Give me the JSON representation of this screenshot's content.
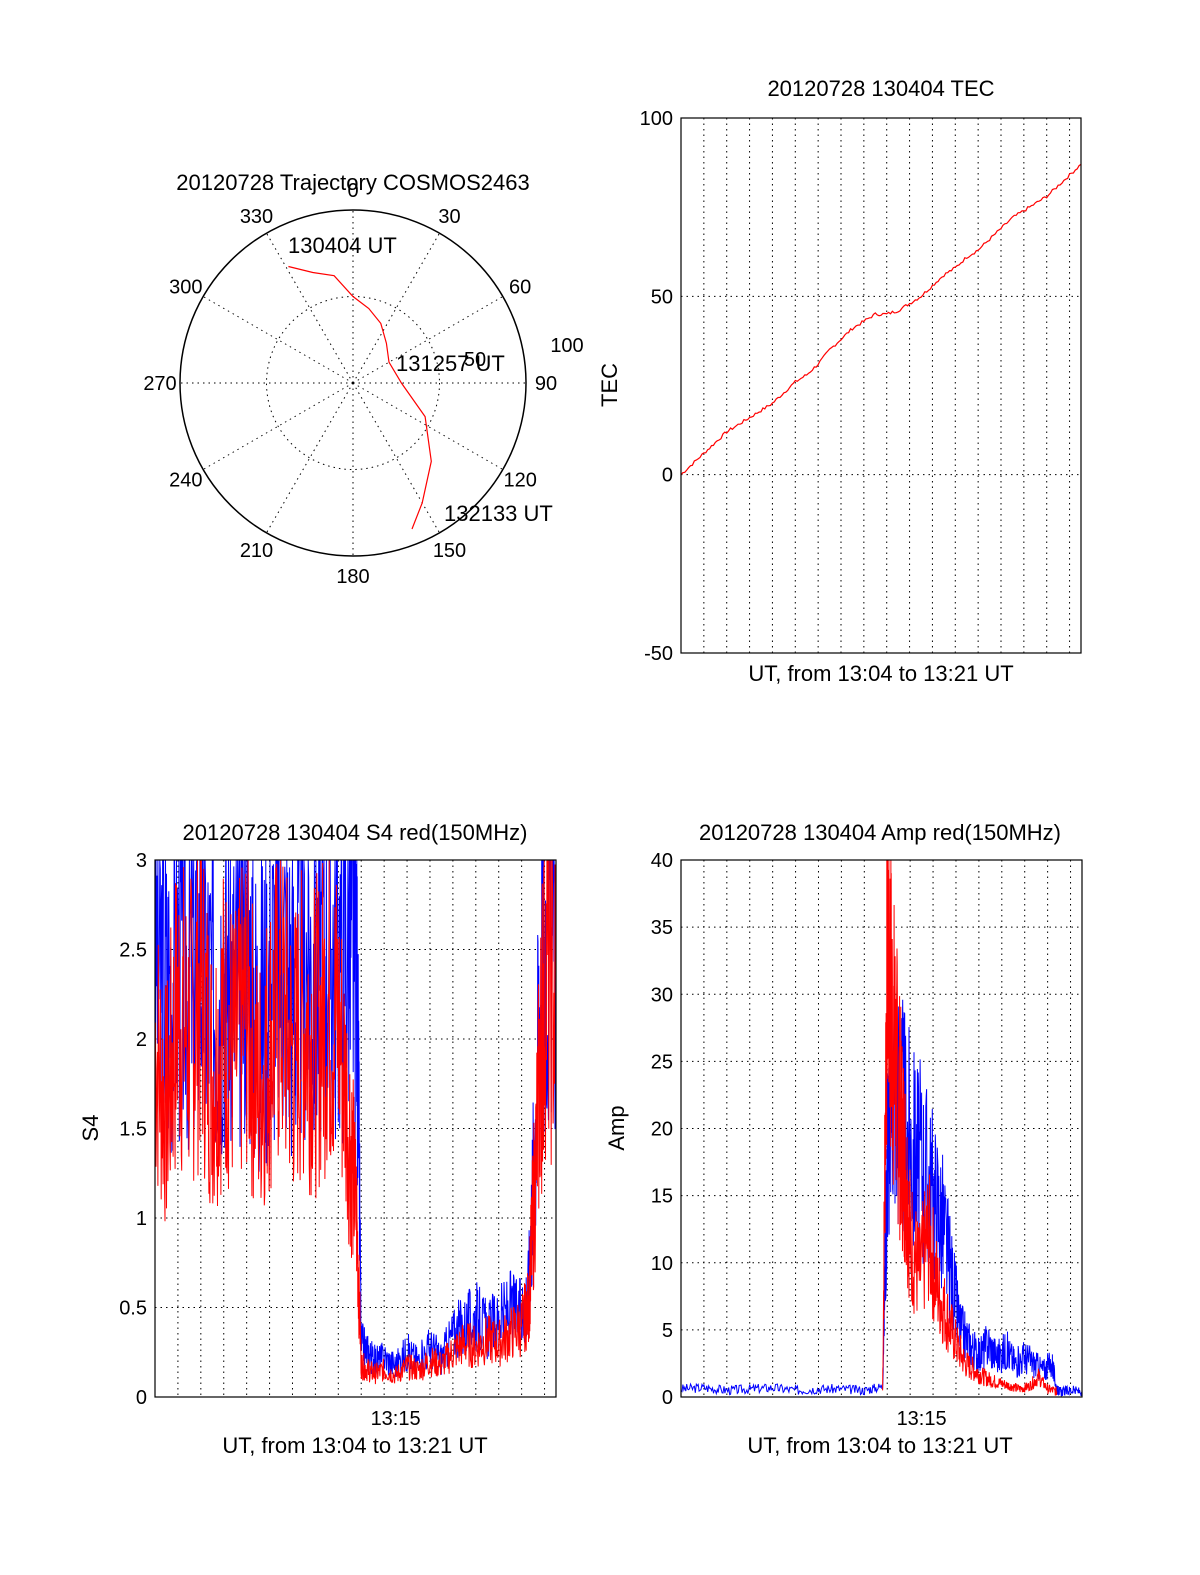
{
  "colors": {
    "red_series": "#ff0000",
    "blue_series": "#0000ff",
    "axes": "#000000"
  },
  "chart_data": [
    {
      "id": "trajectory",
      "type": "polar",
      "title": "20120728 Trajectory COSMOS2463",
      "azimuth_labels": [
        "0",
        "30",
        "60",
        "90",
        "120",
        "150",
        "180",
        "210",
        "240",
        "270",
        "300",
        "330"
      ],
      "radial_labels": [
        "50",
        "100"
      ],
      "radial_range": [
        0,
        100
      ],
      "grid": true,
      "start_label": "130404 UT",
      "mid_label": "131257 UT",
      "end_label": "132133 UT",
      "track": {
        "azimuth_deg": [
          331,
          340,
          350,
          0,
          12,
          25,
          40,
          60,
          90,
          115,
          135,
          150,
          158
        ],
        "radius": [
          77,
          68,
          63,
          50,
          44,
          38,
          30,
          24,
          28,
          46,
          64,
          80,
          91
        ]
      }
    },
    {
      "id": "tec",
      "type": "line",
      "title": "20120728 130404 TEC",
      "ylabel": "TEC",
      "xlabel": "UT, from 13:04 to 13:21 UT",
      "ylim": [
        -50,
        100
      ],
      "yticks": [
        "-50",
        "0",
        "50",
        "100"
      ],
      "xlim_min": [
        0,
        17.5
      ],
      "grid": true,
      "series": [
        {
          "color": "red",
          "x": [
            0,
            0.5,
            1,
            1.5,
            2,
            2.5,
            3,
            3.5,
            4,
            4.5,
            5,
            5.5,
            6,
            6.5,
            7,
            7.5,
            8,
            8.5,
            9,
            9.5,
            10,
            10.5,
            11,
            11.5,
            12,
            12.5,
            13,
            13.5,
            14,
            14.5,
            15,
            15.5,
            16,
            16.5,
            17,
            17.5
          ],
          "y": [
            0,
            3,
            6,
            9,
            12,
            14,
            16,
            18,
            20,
            23,
            26,
            28,
            31,
            35,
            38,
            41,
            43,
            45,
            45,
            46,
            48,
            50,
            53,
            56,
            58,
            61,
            63,
            66,
            69,
            72,
            74,
            76,
            78,
            81,
            84,
            87
          ]
        }
      ]
    },
    {
      "id": "s4",
      "type": "line",
      "title": "20120728 130404 S4 red(150MHz)",
      "ylabel": "S4",
      "xlabel": "UT, from 13:04 to 13:21 UT",
      "ylim": [
        0,
        3
      ],
      "yticks": [
        "0",
        "0.5",
        "1",
        "1.5",
        "2",
        "2.5",
        "3"
      ],
      "xtick_label": "13:15",
      "xtick_value": 10.5,
      "xlim_min": [
        0,
        17.5
      ],
      "grid": true,
      "series": [
        {
          "color": "blue",
          "x": [
            0,
            0.5,
            1,
            1.5,
            2,
            2.5,
            3,
            3.5,
            4,
            4.5,
            5,
            5.5,
            6,
            6.5,
            7,
            7.5,
            8,
            8.5,
            8.8,
            9.0,
            9.3,
            9.6,
            10,
            10.5,
            11,
            11.5,
            12,
            12.5,
            13,
            13.5,
            14,
            14.5,
            15,
            15.5,
            16,
            16.3,
            16.5,
            16.8,
            17,
            17.5
          ],
          "y": [
            2.6,
            2.3,
            2.5,
            2.4,
            2.6,
            2.2,
            2.5,
            2.3,
            2.6,
            2.1,
            2.4,
            2.6,
            2.3,
            2.5,
            2.4,
            2.6,
            2.5,
            2.7,
            2.5,
            0.3,
            0.25,
            0.2,
            0.22,
            0.18,
            0.25,
            0.2,
            0.28,
            0.22,
            0.35,
            0.4,
            0.45,
            0.38,
            0.42,
            0.5,
            0.45,
            0.6,
            1.2,
            2.2,
            2.6,
            2.5
          ]
        },
        {
          "color": "red",
          "x": [
            0,
            0.5,
            1,
            1.5,
            2,
            2.5,
            3,
            3.5,
            4,
            4.5,
            5,
            5.5,
            6,
            6.5,
            7,
            7.5,
            8,
            8.5,
            8.8,
            9.0,
            9.3,
            9.6,
            10,
            10.5,
            11,
            11.5,
            12,
            12.5,
            13,
            13.5,
            14,
            14.5,
            15,
            15.5,
            16,
            16.3,
            16.5,
            16.8,
            17,
            17.5
          ],
          "y": [
            2.0,
            1.6,
            2.2,
            2.0,
            2.3,
            1.8,
            2.1,
            1.9,
            2.2,
            1.7,
            2.0,
            2.2,
            1.9,
            2.1,
            2.0,
            2.2,
            2.1,
            1.5,
            1.0,
            0.18,
            0.15,
            0.13,
            0.15,
            0.12,
            0.17,
            0.15,
            0.2,
            0.18,
            0.25,
            0.3,
            0.28,
            0.32,
            0.3,
            0.35,
            0.4,
            0.5,
            1.0,
            1.8,
            2.4,
            2.2
          ]
        }
      ]
    },
    {
      "id": "amp",
      "type": "line",
      "title": "20120728 130404 Amp red(150MHz)",
      "ylabel": "Amp",
      "xlabel": "UT, from 13:04 to 13:21 UT",
      "ylim": [
        0,
        40
      ],
      "yticks": [
        "0",
        "5",
        "10",
        "15",
        "20",
        "25",
        "30",
        "35",
        "40"
      ],
      "xtick_label": "13:15",
      "xtick_value": 10.5,
      "xlim_min": [
        0,
        17.5
      ],
      "grid": true,
      "series": [
        {
          "color": "blue",
          "x": [
            0,
            1,
            2,
            3,
            4,
            5,
            6,
            7,
            8,
            8.8,
            9.0,
            9.2,
            9.5,
            9.8,
            10.2,
            10.6,
            11,
            11.4,
            11.8,
            12.2,
            12.6,
            13,
            13.4,
            13.8,
            14.2,
            14.6,
            15,
            15.4,
            15.8,
            16.2,
            16.4,
            16.6,
            17,
            17.5
          ],
          "y": [
            0.6,
            0.7,
            0.5,
            0.6,
            0.7,
            0.5,
            0.6,
            0.6,
            0.5,
            0.8,
            18,
            25,
            22,
            20,
            18,
            17,
            15,
            13,
            9,
            5,
            4,
            3,
            4,
            3,
            3.5,
            2.5,
            3,
            2.5,
            2,
            2.5,
            0.5,
            0.4,
            0.5,
            0.4
          ]
        },
        {
          "color": "red",
          "x": [
            8.8,
            9.0,
            9.2,
            9.4,
            9.6,
            9.8,
            10.0,
            10.4,
            10.8,
            11.2,
            11.6,
            12.0,
            12.4,
            12.8,
            13.2,
            13.6,
            14.0,
            14.4,
            14.8,
            15.2,
            15.6,
            16.0,
            16.4
          ],
          "y": [
            0.5,
            36,
            28,
            24,
            20,
            17,
            12,
            9,
            12,
            8,
            6,
            4,
            2.5,
            2,
            1.5,
            1.2,
            1.0,
            0.8,
            0.6,
            0.8,
            1.5,
            0.6,
            0.4
          ]
        }
      ]
    }
  ]
}
